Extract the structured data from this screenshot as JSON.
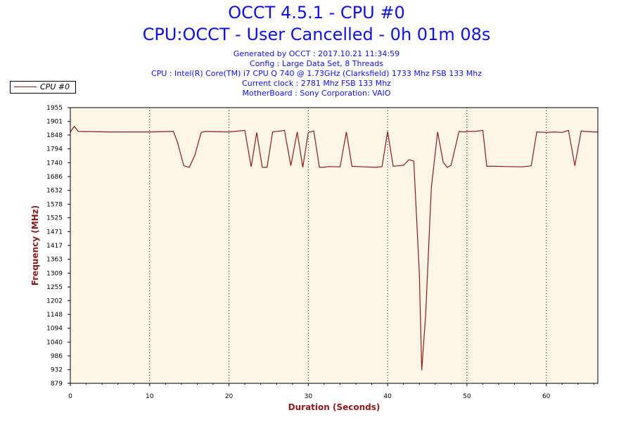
{
  "header": {
    "title": "OCCT 4.5.1 - CPU #0",
    "subtitle": "CPU:OCCT - User Cancelled - 0h 01m 08s",
    "info": [
      "Generated by OCCT : 2017.10.21 11:34:59",
      "Config : Large Data Set, 8 Threads",
      "CPU : Intel(R) Core(TM) i7 CPU Q 740 @ 1.73GHz (Clarksfield) 1733 Mhz FSB 133 Mhz",
      "Current clock : 2781 Mhz FSB 133 Mhz",
      "MotherBoard : Sony Corporation: VAIO"
    ]
  },
  "legend": {
    "label": "CPU #0",
    "color": "#8b1a1a"
  },
  "colors": {
    "plot_bg": "#fdf5e6",
    "line": "#8b1a1a",
    "title": "#1010e0"
  },
  "chart_data": {
    "type": "line",
    "title": "OCCT 4.5.1 - CPU #0",
    "xlabel": "Duration (Seconds)",
    "ylabel": "Frequency (MHz)",
    "xlim": [
      0,
      66.5
    ],
    "ylim": [
      879,
      1955
    ],
    "x_ticks": [
      0,
      10,
      20,
      30,
      40,
      50,
      60
    ],
    "y_ticks": [
      879,
      932,
      986,
      1040,
      1094,
      1148,
      1202,
      1255,
      1309,
      1363,
      1417,
      1471,
      1525,
      1578,
      1632,
      1686,
      1740,
      1794,
      1848,
      1901,
      1955
    ],
    "grid": "vertical-dotted",
    "series": [
      {
        "name": "CPU #0",
        "x": [
          0,
          0.5,
          1,
          5,
          10,
          13,
          13.5,
          14.3,
          15,
          15.7,
          16.5,
          17,
          20,
          22,
          22.8,
          23.5,
          24.2,
          24.8,
          25.5,
          27,
          27.8,
          28.6,
          29.3,
          30,
          30.7,
          31.4,
          31.9,
          32.5,
          34,
          34.8,
          35.5,
          37,
          38.5,
          39.3,
          40,
          40.7,
          41.3,
          42,
          42.7,
          43.3,
          44,
          44.3,
          44.8,
          45.5,
          46.3,
          47,
          47.5,
          48,
          49,
          49.7,
          50,
          51,
          52,
          52.5,
          53.5,
          55,
          57,
          58.1,
          58.8,
          60,
          61,
          62,
          62.8,
          63.6,
          64.4,
          65,
          66,
          66.5
        ],
        "values": [
          1860,
          1882,
          1862,
          1860,
          1860,
          1862,
          1820,
          1728,
          1722,
          1770,
          1858,
          1862,
          1860,
          1866,
          1724,
          1858,
          1722,
          1722,
          1860,
          1866,
          1728,
          1860,
          1722,
          1858,
          1864,
          1722,
          1722,
          1725,
          1724,
          1860,
          1726,
          1724,
          1722,
          1725,
          1862,
          1726,
          1728,
          1730,
          1752,
          1746,
          1310,
          930,
          1150,
          1640,
          1860,
          1742,
          1722,
          1730,
          1862,
          1860,
          1862,
          1862,
          1866,
          1726,
          1726,
          1725,
          1724,
          1728,
          1860,
          1858,
          1860,
          1858,
          1866,
          1728,
          1864,
          1862,
          1860,
          1860
        ]
      }
    ]
  }
}
